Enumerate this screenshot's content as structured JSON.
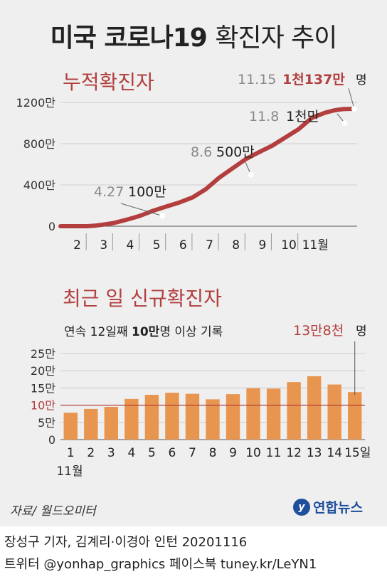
{
  "title": {
    "main": "미국 코로나19",
    "rest": "확진자 추이"
  },
  "cumulative": {
    "heading": "누적확진자",
    "unit_label": "명",
    "chart_data": {
      "type": "line",
      "x_tick_labels": [
        "2",
        "3",
        "4",
        "5",
        "6",
        "7",
        "8",
        "9",
        "10",
        "11월"
      ],
      "y_tick_labels": [
        "0",
        "400만",
        "800만",
        "1200만"
      ],
      "ylim": [
        0,
        12000000
      ],
      "x": [
        0,
        0.5,
        1,
        1.3,
        1.6,
        2,
        2.3,
        2.6,
        3,
        3.5,
        4,
        4.5,
        5,
        5.5,
        6,
        6.5,
        7,
        7.3,
        7.6,
        8,
        8.5,
        9,
        9.5,
        10,
        10.3,
        10.5,
        10.7,
        10.9,
        11
      ],
      "y": [
        10,
        10,
        1000,
        50000,
        150000,
        300000,
        500000,
        700000,
        1000000,
        1500000,
        1900000,
        2300000,
        2800000,
        3600000,
        4700000,
        5600000,
        6500000,
        6900000,
        7300000,
        7800000,
        8600000,
        9400000,
        10500000,
        11000000,
        11200000,
        11300000,
        11350000,
        11370000,
        11370000
      ],
      "annotations": [
        {
          "date": "4.27",
          "text": "100만",
          "value": 1000000
        },
        {
          "date": "8.6",
          "text": "500만",
          "value": 5000000
        },
        {
          "date": "11.8",
          "text": "1천만",
          "value": 10000000
        },
        {
          "date": "11.15",
          "text": "1천137만",
          "value": 11370000
        }
      ]
    }
  },
  "daily": {
    "heading": "최근 일 신규확진자",
    "subtitle_a": "연속 12일째 ",
    "subtitle_b": "10만",
    "subtitle_c": "명 이상 기록",
    "highlight": "13만8천",
    "unit_label": "명",
    "reference_label": "10만",
    "chart_data": {
      "type": "bar",
      "categories": [
        "1",
        "2",
        "3",
        "4",
        "5",
        "6",
        "7",
        "8",
        "9",
        "10",
        "11",
        "12",
        "13",
        "14",
        "15일"
      ],
      "x_sublabel": "11월",
      "values": [
        78000,
        89000,
        95000,
        118000,
        130000,
        136000,
        133000,
        117000,
        132000,
        149000,
        148000,
        167000,
        184000,
        160000,
        138000
      ],
      "y_tick_labels": [
        "0",
        "5만",
        "10만",
        "15만",
        "20만",
        "25만"
      ],
      "ylim": [
        0,
        250000
      ],
      "reference_line": 100000,
      "highlight_value": 138000
    }
  },
  "colors": {
    "line": "#b23e3e",
    "bar": "#e8954f",
    "reference": "#b23e3e",
    "panel": "#efefef"
  },
  "source": "자료/ 월드오미터",
  "logo": {
    "mark": "y",
    "text": "연합뉴스"
  },
  "footer": {
    "line1": "장성구 기자, 김계리·이경아 인턴  20201116",
    "line2": "트위터 @yonhap_graphics  페이스북 tuney.kr/LeYN1"
  }
}
